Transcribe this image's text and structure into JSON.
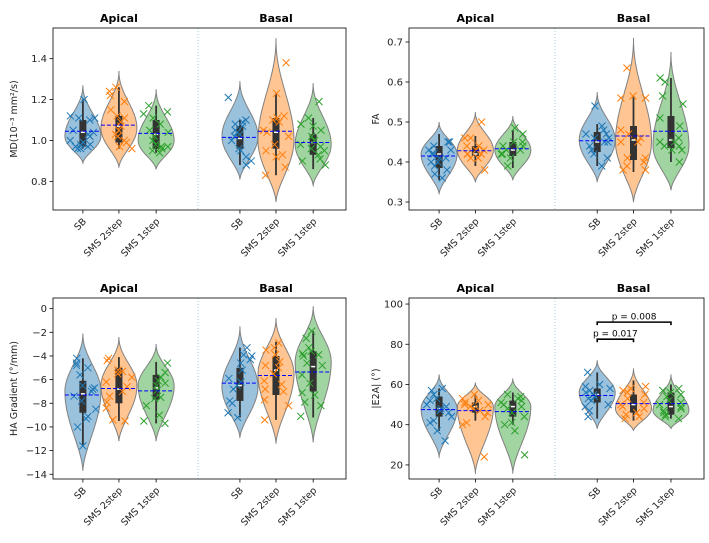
{
  "figure": {
    "group_labels": [
      "Apical",
      "Basal"
    ],
    "categories": [
      "SB",
      "SMS 2step",
      "SMS 1step"
    ],
    "colors": {
      "SB": "#1f77b4",
      "SMS 2step": "#ff7f0e",
      "SMS 1step": "#2ca02c",
      "mean_line": "#0000ff",
      "box": "#333333"
    }
  },
  "chart_data": [
    {
      "type": "violin",
      "ylabel": "MD(10⁻³ mm²/s)",
      "ylim": [
        0.66,
        1.55
      ],
      "yticks": [
        0.8,
        1.0,
        1.2,
        1.4
      ],
      "ytick_labels": [
        "0.8",
        "1.0",
        "1.2",
        "1.4"
      ],
      "groups": [
        {
          "name": "Apical",
          "series": [
            {
              "name": "SB",
              "min": 0.89,
              "max": 1.27,
              "q1": 0.97,
              "median": 1.04,
              "q3": 1.1,
              "wlo": 0.96,
              "whi": 1.2,
              "mean": 1.045,
              "peak": 1.02,
              "points": [
                1.2,
                1.11,
                1.11,
                1.1,
                1.05,
                1.04,
                1.03,
                1.02,
                0.99,
                0.98,
                0.97,
                0.97,
                0.96,
                0.96,
                0.98,
                1.0,
                1.12,
                0.99
              ]
            },
            {
              "name": "SMS 2step",
              "min": 0.87,
              "max": 1.34,
              "q1": 0.99,
              "median": 1.07,
              "q3": 1.12,
              "wlo": 0.96,
              "whi": 1.26,
              "mean": 1.075,
              "peak": 1.06,
              "points": [
                1.26,
                1.24,
                1.22,
                1.19,
                1.15,
                1.12,
                1.09,
                1.07,
                1.05,
                1.03,
                1.0,
                0.99,
                0.97,
                0.96,
                1.11,
                1.02
              ]
            },
            {
              "name": "SMS 1step",
              "min": 0.86,
              "max": 1.25,
              "q1": 0.96,
              "median": 1.03,
              "q3": 1.1,
              "wlo": 0.94,
              "whi": 1.17,
              "mean": 1.035,
              "peak": 1.0,
              "points": [
                1.17,
                1.14,
                1.11,
                1.08,
                1.05,
                1.04,
                1.02,
                1.0,
                0.98,
                0.97,
                0.96,
                0.95,
                0.94,
                0.97,
                1.13
              ]
            }
          ]
        },
        {
          "name": "Basal",
          "series": [
            {
              "name": "SB",
              "min": 0.81,
              "max": 1.29,
              "q1": 0.96,
              "median": 1.01,
              "q3": 1.07,
              "wlo": 0.88,
              "whi": 1.1,
              "mean": 1.015,
              "peak": 1.02,
              "points": [
                1.21,
                1.1,
                1.09,
                1.07,
                1.05,
                1.03,
                1.02,
                1.0,
                0.96,
                0.95,
                0.92,
                0.9,
                0.88,
                1.04,
                1.08
              ]
            },
            {
              "name": "SMS 2step",
              "min": 0.7,
              "max": 1.5,
              "q1": 0.96,
              "median": 1.04,
              "q3": 1.11,
              "wlo": 0.83,
              "whi": 1.23,
              "mean": 1.045,
              "peak": 1.0,
              "points": [
                1.38,
                1.23,
                1.12,
                1.11,
                1.1,
                1.05,
                1.04,
                1.02,
                0.98,
                0.95,
                0.93,
                0.92,
                0.87,
                0.83,
                1.09
              ]
            },
            {
              "name": "SMS 1step",
              "min": 0.78,
              "max": 1.28,
              "q1": 0.93,
              "median": 0.99,
              "q3": 1.03,
              "wlo": 0.86,
              "whi": 1.11,
              "mean": 0.99,
              "peak": 0.98,
              "points": [
                1.19,
                1.11,
                1.08,
                1.07,
                1.02,
                1.0,
                0.98,
                0.97,
                0.96,
                0.93,
                0.91,
                0.9,
                0.88,
                1.05,
                0.95
              ]
            }
          ]
        }
      ]
    },
    {
      "type": "violin",
      "ylabel": "FA",
      "ylim": [
        0.28,
        0.735
      ],
      "yticks": [
        0.3,
        0.4,
        0.5,
        0.6,
        0.7
      ],
      "ytick_labels": [
        "0.3",
        "0.4",
        "0.5",
        "0.6",
        "0.7"
      ],
      "groups": [
        {
          "name": "Apical",
          "series": [
            {
              "name": "SB",
              "min": 0.32,
              "max": 0.5,
              "q1": 0.385,
              "median": 0.42,
              "q3": 0.44,
              "wlo": 0.355,
              "whi": 0.47,
              "mean": 0.415,
              "peak": 0.42,
              "points": [
                0.45,
                0.44,
                0.43,
                0.42,
                0.41,
                0.4,
                0.39,
                0.38,
                0.37,
                0.36,
                0.45,
                0.43,
                0.41,
                0.42,
                0.4
              ]
            },
            {
              "name": "SMS 2step",
              "min": 0.35,
              "max": 0.525,
              "q1": 0.415,
              "median": 0.42,
              "q3": 0.44,
              "wlo": 0.39,
              "whi": 0.465,
              "mean": 0.428,
              "peak": 0.43,
              "points": [
                0.5,
                0.46,
                0.46,
                0.44,
                0.43,
                0.42,
                0.42,
                0.41,
                0.41,
                0.42,
                0.38,
                0.43,
                0.44
              ]
            },
            {
              "name": "SMS 1step",
              "min": 0.355,
              "max": 0.515,
              "q1": 0.415,
              "median": 0.43,
              "q3": 0.45,
              "wlo": 0.385,
              "whi": 0.48,
              "mean": 0.433,
              "peak": 0.43,
              "points": [
                0.485,
                0.47,
                0.45,
                0.44,
                0.44,
                0.43,
                0.42,
                0.41,
                0.39,
                0.43,
                0.45,
                0.42
              ]
            }
          ]
        },
        {
          "name": "Basal",
          "series": [
            {
              "name": "SB",
              "min": 0.35,
              "max": 0.575,
              "q1": 0.425,
              "median": 0.45,
              "q3": 0.475,
              "wlo": 0.39,
              "whi": 0.495,
              "mean": 0.453,
              "peak": 0.455,
              "points": [
                0.54,
                0.49,
                0.48,
                0.47,
                0.46,
                0.45,
                0.45,
                0.44,
                0.43,
                0.42,
                0.41,
                0.39,
                0.47,
                0.46
              ]
            },
            {
              "name": "SMS 2step",
              "min": 0.3,
              "max": 0.71,
              "q1": 0.405,
              "median": 0.455,
              "q3": 0.49,
              "wlo": 0.375,
              "whi": 0.565,
              "mean": 0.465,
              "peak": 0.45,
              "points": [
                0.635,
                0.565,
                0.56,
                0.56,
                0.48,
                0.47,
                0.46,
                0.45,
                0.41,
                0.41,
                0.4,
                0.39,
                0.38,
                0.38,
                0.45
              ]
            },
            {
              "name": "SMS 1step",
              "min": 0.33,
              "max": 0.675,
              "q1": 0.435,
              "median": 0.455,
              "q3": 0.515,
              "wlo": 0.4,
              "whi": 0.61,
              "mean": 0.477,
              "peak": 0.44,
              "points": [
                0.61,
                0.6,
                0.565,
                0.545,
                0.51,
                0.49,
                0.45,
                0.44,
                0.44,
                0.43,
                0.43,
                0.4,
                0.45,
                0.46
              ]
            }
          ]
        }
      ]
    },
    {
      "type": "violin",
      "ylabel": "HA Gradient (°/mm)",
      "ylim": [
        -14.4,
        0.9
      ],
      "yticks": [
        -14,
        -12,
        -10,
        -8,
        -6,
        -4,
        -2,
        0
      ],
      "ytick_labels": [
        "−14",
        "−12",
        "−10",
        "−8",
        "−6",
        "−4",
        "−2",
        "0"
      ],
      "groups": [
        {
          "name": "Apical",
          "series": [
            {
              "name": "SB",
              "min": -13.7,
              "max": -2.1,
              "q1": -8.8,
              "median": -7.2,
              "q3": -6.1,
              "wlo": -11.6,
              "whi": -4.2,
              "mean": -7.3,
              "peak": -7.0,
              "points": [
                -4.2,
                -4.6,
                -4.8,
                -5.0,
                -5.6,
                -6.5,
                -6.7,
                -7.0,
                -7.4,
                -7.8,
                -8.5,
                -9.1,
                -9.3,
                -10.0,
                -11.6,
                -6.8
              ]
            },
            {
              "name": "SMS 2step",
              "min": -11.2,
              "max": -2.4,
              "q1": -8.0,
              "median": -6.8,
              "q3": -5.0,
              "wlo": -9.5,
              "whi": -4.1,
              "mean": -6.75,
              "peak": -6.5,
              "points": [
                -4.2,
                -4.4,
                -5.2,
                -5.3,
                -5.5,
                -6.2,
                -6.6,
                -7.0,
                -7.4,
                -7.9,
                -8.4,
                -9.4,
                -9.5,
                -5.8
              ]
            },
            {
              "name": "SMS 1step",
              "min": -11.2,
              "max": -3.0,
              "q1": -7.7,
              "median": -6.7,
              "q3": -5.6,
              "wlo": -9.7,
              "whi": -4.5,
              "mean": -6.95,
              "peak": -6.5,
              "points": [
                -4.6,
                -5.4,
                -5.8,
                -6.1,
                -6.5,
                -6.9,
                -7.5,
                -7.6,
                -8.2,
                -9.0,
                -9.5,
                -9.7,
                -6.3
              ]
            }
          ]
        },
        {
          "name": "Basal",
          "series": [
            {
              "name": "SB",
              "min": -10.9,
              "max": -1.5,
              "q1": -7.8,
              "median": -6.5,
              "q3": -5.0,
              "wlo": -9.2,
              "whi": -3.3,
              "mean": -6.3,
              "peak": -6.6,
              "points": [
                -3.3,
                -3.9,
                -4.3,
                -4.6,
                -5.2,
                -5.9,
                -6.2,
                -6.8,
                -7.8,
                -8.0,
                -8.8,
                -9.2,
                -4.0,
                -6.5
              ]
            },
            {
              "name": "SMS 2step",
              "min": -11.4,
              "max": -0.8,
              "q1": -7.3,
              "median": -5.2,
              "q3": -4.0,
              "wlo": -9.4,
              "whi": -2.8,
              "mean": -5.65,
              "peak": -5.5,
              "points": [
                -2.9,
                -3.3,
                -3.5,
                -3.9,
                -4.5,
                -5.0,
                -5.5,
                -6.1,
                -6.8,
                -7.0,
                -7.7,
                -8.2,
                -9.4,
                -4.8,
                -6.4
              ]
            },
            {
              "name": "SMS 1step",
              "min": -11.3,
              "max": 0.2,
              "q1": -7.0,
              "median": -4.9,
              "q3": -3.6,
              "wlo": -9.2,
              "whi": -1.9,
              "mean": -5.35,
              "peak": -4.5,
              "points": [
                -1.9,
                -2.5,
                -3.3,
                -3.6,
                -3.9,
                -4.0,
                -4.6,
                -4.8,
                -5.6,
                -6.3,
                -7.1,
                -7.3,
                -7.9,
                -8.2,
                -9.1,
                -3.8
              ]
            }
          ]
        }
      ]
    },
    {
      "type": "violin",
      "ylabel": "|E2A|  (°)",
      "ylim": [
        13,
        103
      ],
      "yticks": [
        20,
        40,
        60,
        80,
        100
      ],
      "ytick_labels": [
        "20",
        "40",
        "60",
        "80",
        "100"
      ],
      "groups": [
        {
          "name": "Apical",
          "series": [
            {
              "name": "SB",
              "min": 24,
              "max": 65,
              "q1": 44,
              "median": 48,
              "q3": 54,
              "wlo": 37,
              "whi": 58,
              "mean": 47.5,
              "peak": 48,
              "points": [
                58,
                57,
                53,
                52,
                50,
                49,
                48,
                46,
                44,
                42,
                41,
                37,
                32,
                55,
                47
              ]
            },
            {
              "name": "SMS 2step",
              "min": 16,
              "max": 61,
              "q1": 46,
              "median": 49,
              "q3": 51,
              "wlo": 42,
              "whi": 55,
              "mean": 47,
              "peak": 49,
              "points": [
                55,
                53,
                52,
                51,
                50,
                49,
                48,
                47,
                46,
                44,
                41,
                40,
                24,
                50
              ]
            },
            {
              "name": "SMS 1step",
              "min": 16,
              "max": 63,
              "q1": 44,
              "median": 49,
              "q3": 52,
              "wlo": 40,
              "whi": 56,
              "mean": 46.5,
              "peak": 49,
              "points": [
                55,
                54,
                52,
                51,
                50,
                49,
                48,
                46,
                44,
                41,
                40,
                37,
                25,
                53
              ]
            }
          ]
        },
        {
          "name": "Basal",
          "series": [
            {
              "name": "SB",
              "min": 38,
              "max": 72,
              "q1": 51,
              "median": 55,
              "q3": 58,
              "wlo": 43,
              "whi": 66,
              "mean": 54.5,
              "peak": 56,
              "points": [
                66,
                60,
                59,
                58,
                57,
                55,
                53,
                52,
                50,
                49,
                47,
                44,
                56,
                54
              ]
            },
            {
              "name": "SMS 2step",
              "min": 37,
              "max": 68,
              "q1": 46,
              "median": 50,
              "q3": 55,
              "wlo": 42,
              "whi": 62,
              "mean": 50.5,
              "peak": 48,
              "points": [
                59,
                58,
                56,
                55,
                53,
                51,
                50,
                49,
                48,
                46,
                45,
                44,
                43,
                57
              ]
            },
            {
              "name": "SMS 1step",
              "min": 38,
              "max": 65,
              "q1": 45,
              "median": 49,
              "q3": 56,
              "wlo": 43,
              "whi": 60,
              "mean": 50.5,
              "peak": 47,
              "points": [
                58,
                57,
                56,
                55,
                54,
                52,
                51,
                49,
                48,
                47,
                46,
                45,
                44,
                43,
                50
              ]
            }
          ]
        }
      ],
      "annotations": [
        {
          "text": "p = 0.008",
          "group": "Basal",
          "from": "SB",
          "to": "SMS 1step",
          "y": 91
        },
        {
          "text": "p = 0.017",
          "group": "Basal",
          "from": "SB",
          "to": "SMS 2step",
          "y": 82.5
        }
      ]
    }
  ]
}
